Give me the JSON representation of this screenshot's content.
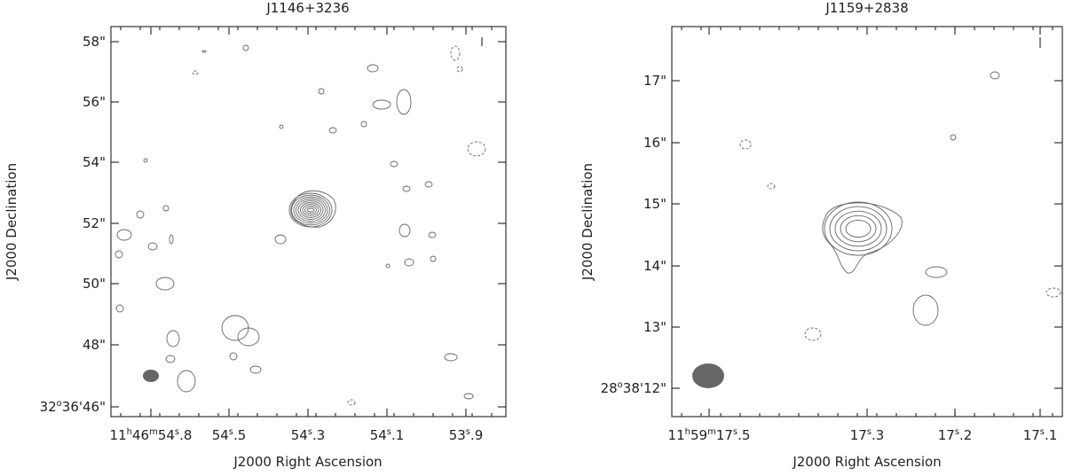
{
  "panels": [
    {
      "title": "J1146+3236",
      "x_label": "J2000 Right Ascension",
      "y_label": "J2000 Declination",
      "x_ticks": [
        [
          {
            "text": "11"
          },
          {
            "sup": "h"
          },
          {
            "text": "46"
          },
          {
            "sup": "m"
          },
          {
            "text": "54"
          },
          {
            "sup": "s"
          },
          {
            "text": ".8"
          }
        ],
        [
          {
            "text": "54"
          },
          {
            "sup": "s"
          },
          {
            "text": ".5"
          }
        ],
        [
          {
            "text": "54"
          },
          {
            "sup": "s"
          },
          {
            "text": ".3"
          }
        ],
        [
          {
            "text": "54"
          },
          {
            "sup": "s"
          },
          {
            "text": ".1"
          }
        ],
        [
          {
            "text": "53"
          },
          {
            "sup": "s"
          },
          {
            "text": ".9"
          }
        ]
      ],
      "y_ticks": [
        [
          {
            "text": "58\""
          }
        ],
        [
          {
            "text": "56\""
          }
        ],
        [
          {
            "text": "54\""
          }
        ],
        [
          {
            "text": "52\""
          }
        ],
        [
          {
            "text": "50\""
          }
        ],
        [
          {
            "text": "48\""
          }
        ],
        [
          {
            "text": "32"
          },
          {
            "sup": "o"
          },
          {
            "text": "36'46\""
          }
        ]
      ]
    },
    {
      "title": "J1159+2838",
      "x_label": "J2000 Right Ascension",
      "y_label": "J2000 Declination",
      "x_ticks": [
        [
          {
            "text": "11"
          },
          {
            "sup": "h"
          },
          {
            "text": "59"
          },
          {
            "sup": "m"
          },
          {
            "text": "17"
          },
          {
            "sup": "s"
          },
          {
            "text": ".5"
          }
        ],
        [
          {
            "text": "17"
          },
          {
            "sup": "s"
          },
          {
            "text": ".3"
          }
        ],
        [
          {
            "text": "17"
          },
          {
            "sup": "s"
          },
          {
            "text": ".2"
          }
        ],
        [
          {
            "text": "17"
          },
          {
            "sup": "s"
          },
          {
            "text": ".1"
          }
        ]
      ],
      "y_ticks": [
        [
          {
            "text": "17\""
          }
        ],
        [
          {
            "text": "16\""
          }
        ],
        [
          {
            "text": "15\""
          }
        ],
        [
          {
            "text": "14\""
          }
        ],
        [
          {
            "text": "13\""
          }
        ],
        [
          {
            "text": "28"
          },
          {
            "sup": "o"
          },
          {
            "text": "38'12\""
          }
        ]
      ]
    }
  ]
}
